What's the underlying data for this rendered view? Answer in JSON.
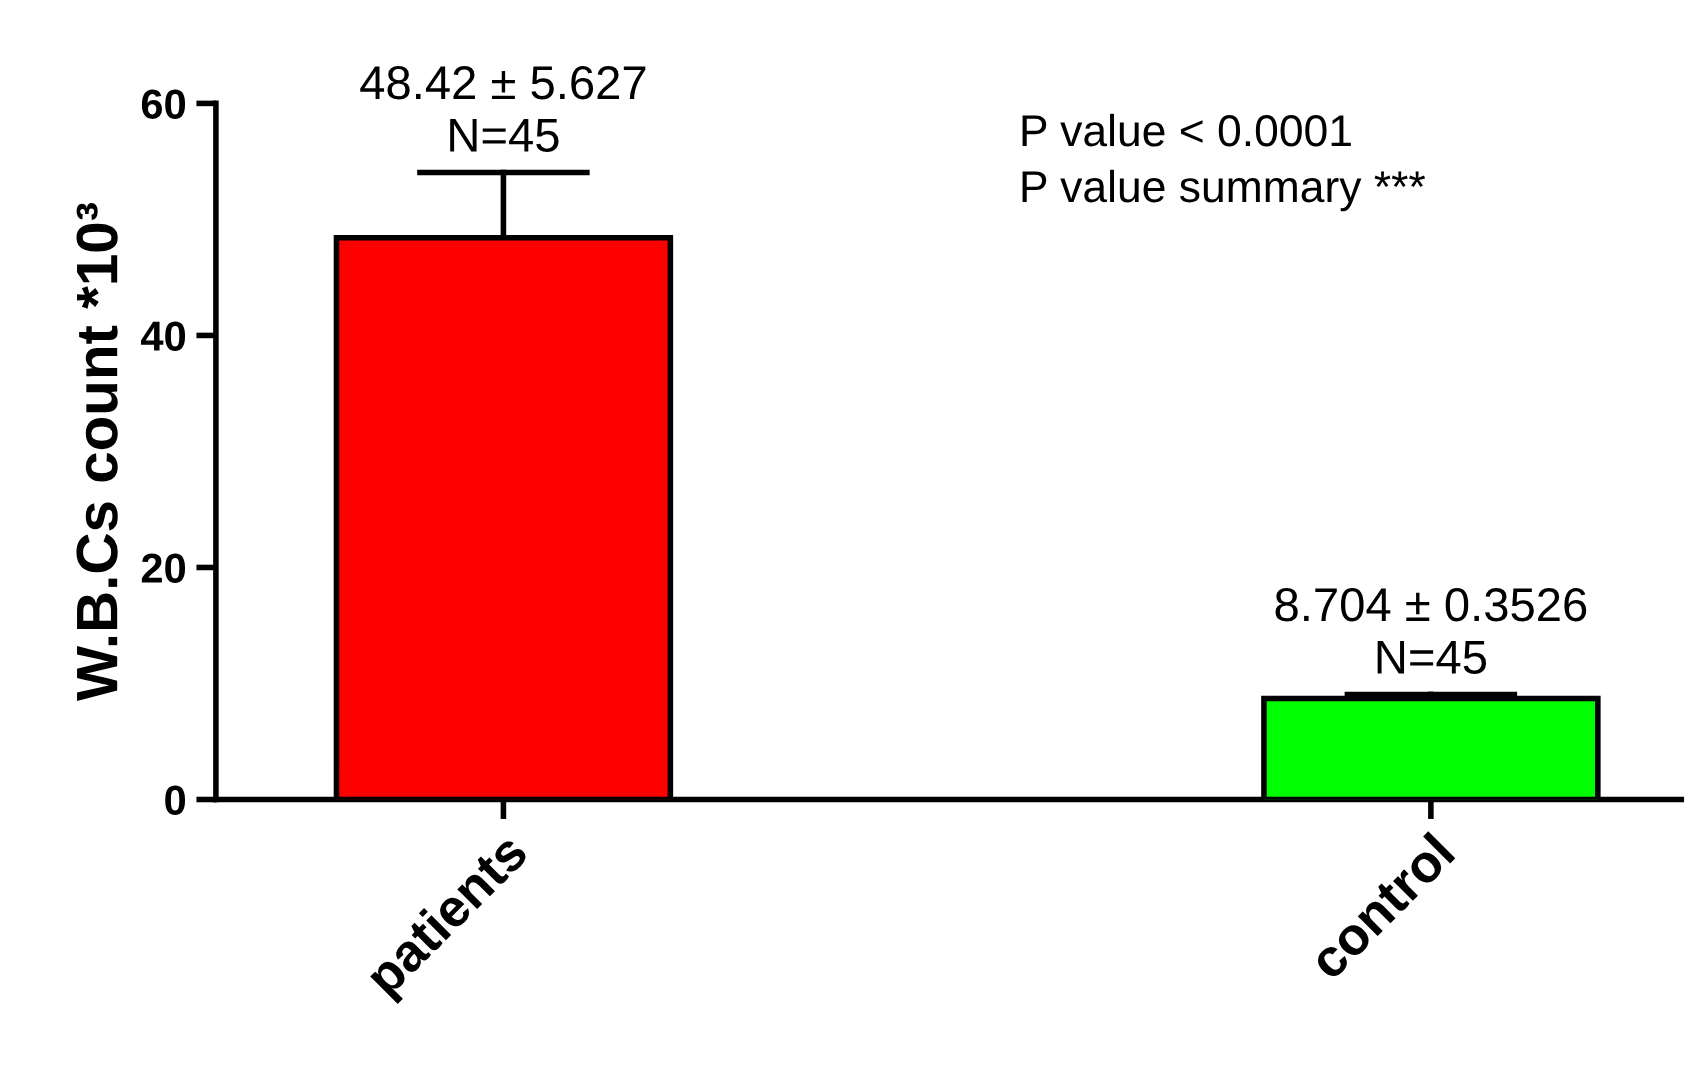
{
  "chart_data": {
    "type": "bar",
    "ylabel": "W.B.Cs count *10³",
    "categories": [
      "patients",
      "control"
    ],
    "values": [
      48.42,
      8.704
    ],
    "colors": [
      "#ff0000",
      "#00ff00"
    ],
    "errors": [
      [
        48.42,
        54.047
      ],
      [
        8.704,
        9.0566
      ]
    ],
    "value_labels": [
      "48.42 ± 5.627\nN=45",
      "8.704 ± 0.3526\nN=45"
    ],
    "annotations": [
      "P value < 0.0001\nP value summary ***"
    ],
    "ylim": [
      0,
      60
    ],
    "yticks": [
      0,
      20,
      40,
      60
    ],
    "grid": false,
    "legend": false
  }
}
